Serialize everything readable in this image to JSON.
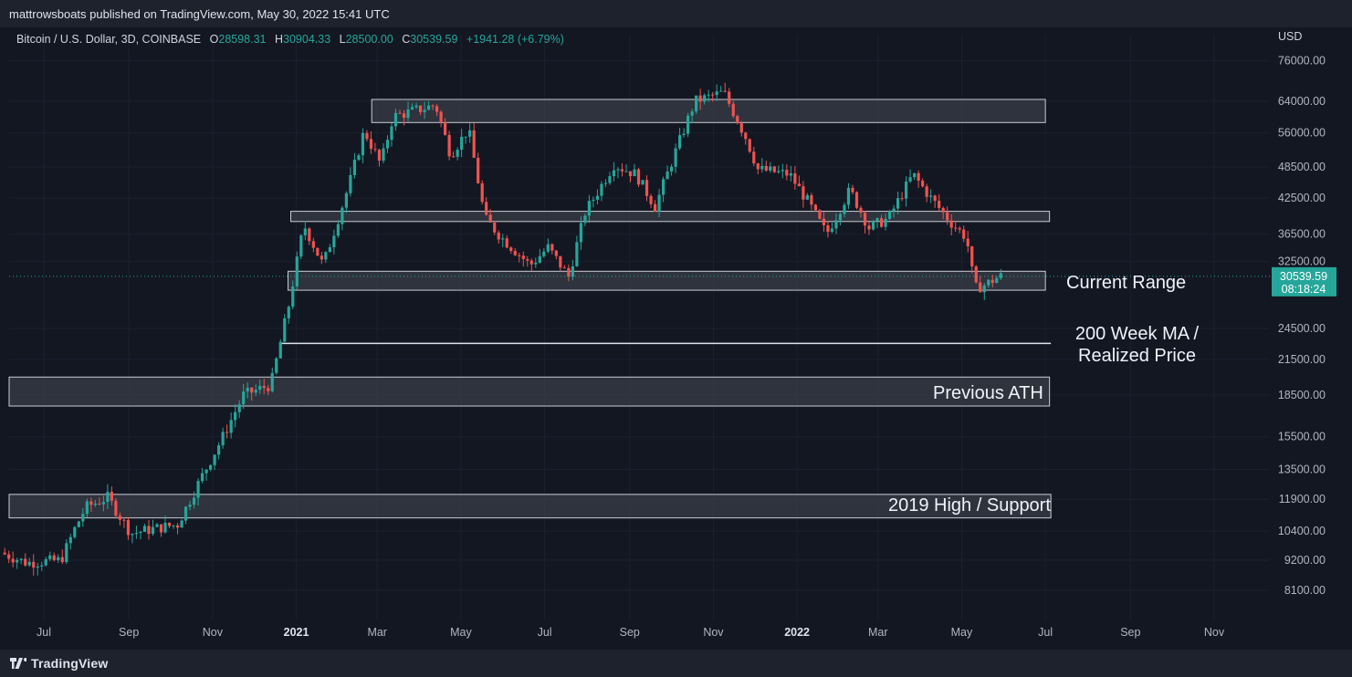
{
  "publisher_line": "mattrowsboats published on TradingView.com, May 30, 2022 15:41 UTC",
  "legend": {
    "symbol": "Bitcoin / U.S. Dollar, 3D, COINBASE",
    "o_label": "O",
    "o_value": "28598.31",
    "h_label": "H",
    "h_value": "30904.33",
    "l_label": "L",
    "l_value": "28500.00",
    "c_label": "C",
    "c_value": "30539.59",
    "change": "+1941.28 (+6.79%)"
  },
  "brand": "TradingView",
  "colors": {
    "up": "#26a69a",
    "down": "#ef5350",
    "background": "#131722",
    "zone_fill": "#3a3d47",
    "zone_border": "#c9ccd4"
  },
  "annotations": {
    "current_range": "Current Range",
    "ma_line1": "200 Week MA /",
    "ma_line2": "Realized Price",
    "previous_ath": "Previous ATH",
    "high_2019": "2019 High / Support"
  },
  "chart_data": {
    "type": "candlestick",
    "scale": "log",
    "currency_label": "USD",
    "y_ticks": [
      "76000.00",
      "64000.00",
      "56000.00",
      "48500.00",
      "42500.00",
      "36500.00",
      "32500.00",
      "24500.00",
      "21500.00",
      "18500.00",
      "15500.00",
      "13500.00",
      "11900.00",
      "10400.00",
      "9200.00",
      "8100.00"
    ],
    "x_ticks": [
      {
        "label": "Jul",
        "date": "2020-07-01",
        "bold": false
      },
      {
        "label": "Sep",
        "date": "2020-09-01",
        "bold": false
      },
      {
        "label": "Nov",
        "date": "2020-11-01",
        "bold": false
      },
      {
        "label": "2021",
        "date": "2021-01-01",
        "bold": true
      },
      {
        "label": "Mar",
        "date": "2021-03-01",
        "bold": false
      },
      {
        "label": "May",
        "date": "2021-05-01",
        "bold": false
      },
      {
        "label": "Jul",
        "date": "2021-07-01",
        "bold": false
      },
      {
        "label": "Sep",
        "date": "2021-09-01",
        "bold": false
      },
      {
        "label": "Nov",
        "date": "2021-11-01",
        "bold": false
      },
      {
        "label": "2022",
        "date": "2022-01-01",
        "bold": true
      },
      {
        "label": "Mar",
        "date": "2022-03-01",
        "bold": false
      },
      {
        "label": "May",
        "date": "2022-05-01",
        "bold": false
      },
      {
        "label": "Jul",
        "date": "2022-07-01",
        "bold": false
      },
      {
        "label": "Sep",
        "date": "2022-09-01",
        "bold": false
      },
      {
        "label": "Nov",
        "date": "2022-11-01",
        "bold": false
      }
    ],
    "x_range": [
      "2020-06-01",
      "2022-12-31"
    ],
    "current_price": "30539.59",
    "countdown": "08:18:24",
    "zones": [
      {
        "name": "top",
        "from": "2021-02-25",
        "to": "2022-07-01",
        "low": 58500,
        "high": 64500
      },
      {
        "name": "mid",
        "from": "2020-12-28",
        "to": "2022-07-04",
        "low": 38500,
        "high": 40200
      },
      {
        "name": "current_range",
        "from": "2020-12-26",
        "to": "2022-07-01",
        "low": 28800,
        "high": 31200
      },
      {
        "name": "previous_ath",
        "from": "2020-06-01",
        "to": "2022-07-04",
        "low": 17650,
        "high": 19950
      },
      {
        "name": "high_2019",
        "from": "2020-06-01",
        "to": "2022-07-05",
        "low": 11000,
        "high": 12150
      }
    ],
    "lines": [
      {
        "name": "200_week_ma",
        "from": "2020-12-20",
        "to": "2022-07-05",
        "value": 23000
      }
    ],
    "anchors": [
      [
        "2020-06-01",
        9500
      ],
      [
        "2020-06-20",
        9100
      ],
      [
        "2020-07-15",
        9200
      ],
      [
        "2020-07-25",
        10500
      ],
      [
        "2020-08-02",
        11500
      ],
      [
        "2020-08-18",
        12000
      ],
      [
        "2020-09-04",
        10300
      ],
      [
        "2020-09-20",
        10500
      ],
      [
        "2020-10-08",
        10700
      ],
      [
        "2020-10-25",
        13000
      ],
      [
        "2020-11-10",
        15500
      ],
      [
        "2020-11-25",
        18500
      ],
      [
        "2020-12-15",
        19300
      ],
      [
        "2020-12-28",
        27000
      ],
      [
        "2021-01-08",
        38000
      ],
      [
        "2021-01-22",
        32000
      ],
      [
        "2021-02-10",
        45000
      ],
      [
        "2021-02-21",
        56500
      ],
      [
        "2021-03-05",
        49000
      ],
      [
        "2021-03-14",
        60000
      ],
      [
        "2021-04-14",
        63000
      ],
      [
        "2021-04-25",
        51000
      ],
      [
        "2021-05-08",
        57000
      ],
      [
        "2021-05-20",
        39000
      ],
      [
        "2021-06-01",
        36000
      ],
      [
        "2021-06-22",
        32000
      ],
      [
        "2021-07-05",
        34500
      ],
      [
        "2021-07-20",
        30500
      ],
      [
        "2021-08-01",
        40000
      ],
      [
        "2021-08-22",
        49000
      ],
      [
        "2021-09-07",
        47000
      ],
      [
        "2021-09-21",
        41000
      ],
      [
        "2021-10-05",
        51000
      ],
      [
        "2021-10-20",
        64000
      ],
      [
        "2021-11-10",
        66500
      ],
      [
        "2021-11-26",
        55000
      ],
      [
        "2021-12-05",
        48000
      ],
      [
        "2021-12-28",
        47000
      ],
      [
        "2022-01-10",
        42000
      ],
      [
        "2022-01-24",
        36500
      ],
      [
        "2022-02-10",
        44000
      ],
      [
        "2022-02-24",
        37500
      ],
      [
        "2022-03-10",
        39000
      ],
      [
        "2022-03-28",
        47000
      ],
      [
        "2022-04-10",
        42500
      ],
      [
        "2022-04-26",
        38000
      ],
      [
        "2022-05-06",
        36000
      ],
      [
        "2022-05-12",
        29000
      ],
      [
        "2022-05-20",
        29500
      ],
      [
        "2022-05-30",
        30540
      ]
    ]
  }
}
